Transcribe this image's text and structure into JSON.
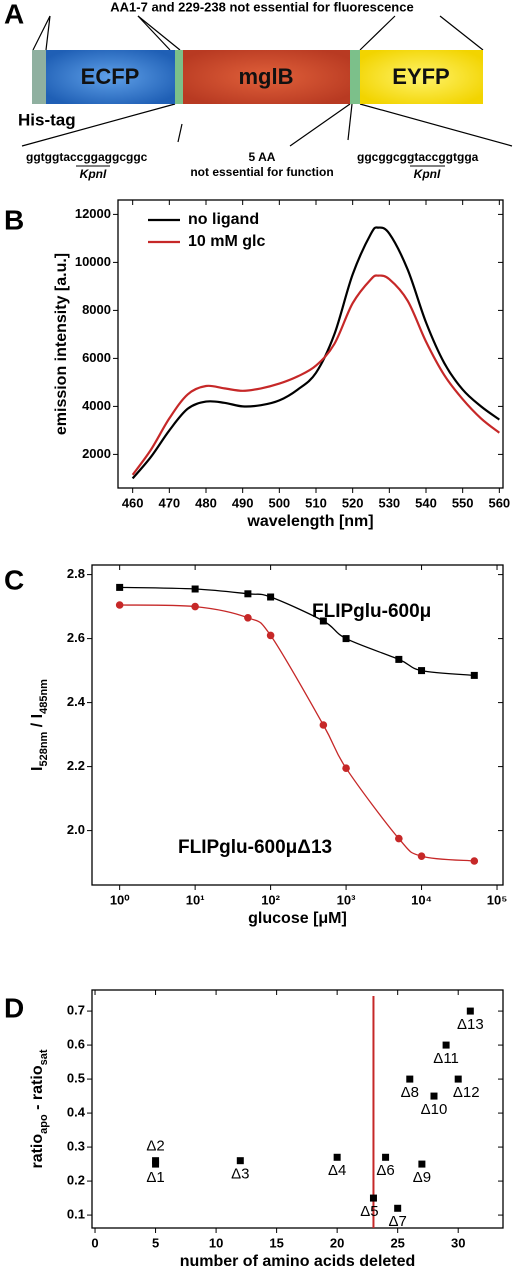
{
  "panels": [
    "A",
    "B",
    "C",
    "D"
  ],
  "diagram": {
    "top_note": "AA1-7 and 229-238  not essential for fluorescence",
    "domains": [
      "ECFP",
      "mglB",
      "EYFP"
    ],
    "his_tag": "His-tag",
    "left_seq": "ggtggtaccggaggcggc",
    "left_site": "KpnI",
    "middle_note": [
      "5 AA",
      "not essential for function"
    ],
    "right_seq": "ggcggcggtaccggtgga",
    "right_site": "KpnI"
  },
  "chart_data": [
    {
      "type": "line",
      "x_label": "wavelength [nm]",
      "y_label": "emission intensity [a.u.]",
      "legend": "upper left",
      "x": [
        460,
        465,
        470,
        475,
        480,
        485,
        490,
        495,
        500,
        505,
        510,
        515,
        520,
        525,
        527,
        530,
        535,
        540,
        545,
        550,
        555,
        560
      ],
      "series": [
        {
          "name": "no ligand",
          "color": "#000000",
          "values": [
            1000,
            1900,
            3000,
            3900,
            4200,
            4150,
            4000,
            4050,
            4250,
            4700,
            5400,
            7000,
            9500,
            11200,
            11450,
            11200,
            9700,
            7500,
            5800,
            4700,
            4000,
            3450
          ]
        },
        {
          "name": "10 mM glc",
          "color": "#c62828",
          "values": [
            1150,
            2200,
            3500,
            4500,
            4850,
            4750,
            4650,
            4750,
            4950,
            5250,
            5700,
            6600,
            8300,
            9300,
            9450,
            9300,
            8400,
            6700,
            5300,
            4300,
            3500,
            2900
          ]
        }
      ],
      "xlim": [
        456,
        561
      ],
      "xticks": [
        460,
        470,
        480,
        490,
        500,
        510,
        520,
        530,
        540,
        550,
        560
      ],
      "ylim": [
        600,
        12600
      ],
      "yticks": [
        2000,
        4000,
        6000,
        8000,
        10000,
        12000
      ]
    },
    {
      "type": "line",
      "log_x": true,
      "x_label": "glucose [μM]",
      "y_label": [
        "I",
        "528nm",
        " / I",
        "485nm"
      ],
      "x": [
        1,
        10,
        50,
        100,
        500,
        1000,
        5000,
        10000,
        50000
      ],
      "series": [
        {
          "name": "FLIPglu-600μ",
          "color": "#000000",
          "marker": "square",
          "values": [
            2.76,
            2.755,
            2.74,
            2.73,
            2.655,
            2.6,
            2.535,
            2.5,
            2.485
          ]
        },
        {
          "name": "FLIPglu-600μΔ13",
          "color": "#c62828",
          "marker": "circle",
          "values": [
            2.705,
            2.7,
            2.665,
            2.61,
            2.33,
            2.195,
            1.975,
            1.92,
            1.905
          ]
        }
      ],
      "xlim": [
        0.43,
        120000
      ],
      "xticks": [
        {
          "value": 1,
          "label": "10⁰"
        },
        {
          "value": 10,
          "label": "10¹"
        },
        {
          "value": 100,
          "label": "10²"
        },
        {
          "value": 1000,
          "label": "10³"
        },
        {
          "value": 10000,
          "label": "10⁴"
        },
        {
          "value": 100000,
          "label": "10⁵"
        }
      ],
      "ylim": [
        1.83,
        2.83
      ],
      "yticks": [
        {
          "value": 2,
          "label": "2.0"
        },
        2.2,
        2.4,
        2.6,
        2.8
      ]
    },
    {
      "type": "scatter",
      "x_label": "number of amino acids deleted",
      "y_label": [
        "ratio",
        "apo",
        " - ratio",
        "sat"
      ],
      "color": "#000000",
      "x": [
        5,
        5,
        12,
        20,
        23,
        24,
        25,
        26,
        27,
        28,
        29,
        30,
        31
      ],
      "values": [
        0.25,
        0.26,
        0.26,
        0.27,
        0.15,
        0.27,
        0.12,
        0.5,
        0.25,
        0.45,
        0.6,
        0.5,
        0.7
      ],
      "point_labels": [
        "Δ1",
        "Δ2",
        "Δ3",
        "Δ4",
        "Δ5",
        "Δ6",
        "Δ7",
        "Δ8",
        "Δ9",
        "Δ10",
        "Δ11",
        "Δ12",
        "Δ13"
      ],
      "vline": {
        "x": 23,
        "color": "#c62828"
      },
      "xlim": [
        -0.25,
        33.7
      ],
      "xticks": [
        0,
        5,
        10,
        15,
        20,
        25,
        30
      ],
      "ylim": [
        0.062,
        0.762
      ],
      "yticks": [
        0.1,
        0.2,
        0.3,
        0.4,
        0.5,
        0.6,
        0.7
      ]
    }
  ]
}
